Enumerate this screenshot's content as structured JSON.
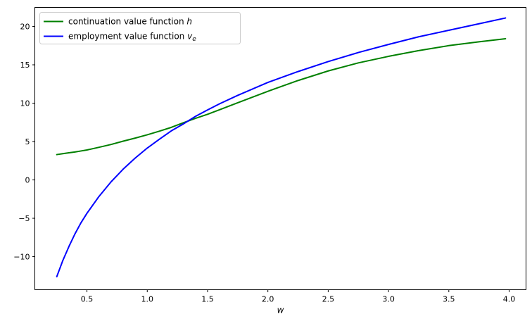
{
  "figure": {
    "background": "#ffffff",
    "axes_edge_color": "#000000",
    "legend_border_color": "#cccccc",
    "legend_background": "#ffffff"
  },
  "chart_data": {
    "type": "line",
    "title": "",
    "xlabel": "w",
    "ylabel": "",
    "grid": false,
    "legend_position": "upper left",
    "xlim": [
      0.068,
      4.14
    ],
    "ylim": [
      -14.31,
      22.48
    ],
    "x_ticks": {
      "values": [
        0.5,
        1.0,
        1.5,
        2.0,
        2.5,
        3.0,
        3.5,
        4.0
      ],
      "labels": [
        "0.5",
        "1.0",
        "1.5",
        "2.0",
        "2.5",
        "3.0",
        "3.5",
        "4.0"
      ]
    },
    "y_ticks": {
      "values": [
        -10,
        -5,
        0,
        5,
        10,
        15,
        20
      ],
      "labels": [
        "−10",
        "−5",
        "0",
        "5",
        "10",
        "15",
        "20"
      ]
    },
    "x": [
      0.25,
      0.3,
      0.35,
      0.4,
      0.45,
      0.5,
      0.6,
      0.7,
      0.8,
      0.9,
      1.0,
      1.1,
      1.2,
      1.3,
      1.4,
      1.5,
      1.6,
      1.75,
      2.0,
      2.25,
      2.5,
      2.75,
      3.0,
      3.25,
      3.5,
      3.75,
      3.97
    ],
    "series": [
      {
        "name": "continuation-value-function-h",
        "legend_text": "continuation value function ",
        "legend_math": "h",
        "legend_sub": "",
        "color": "#008000",
        "line_width": 2,
        "values": [
          3.3,
          3.42,
          3.53,
          3.64,
          3.77,
          3.9,
          4.25,
          4.62,
          5.05,
          5.45,
          5.88,
          6.35,
          6.85,
          7.45,
          8.02,
          8.55,
          9.15,
          10.05,
          11.55,
          12.95,
          14.2,
          15.25,
          16.1,
          16.85,
          17.5,
          18.0,
          18.4
        ]
      },
      {
        "name": "employment-value-function-ve",
        "legend_text": "employment value function ",
        "legend_math": "v",
        "legend_sub": "e",
        "color": "#0000ff",
        "line_width": 2,
        "values": [
          -12.6,
          -10.5,
          -8.7,
          -7.05,
          -5.6,
          -4.35,
          -2.15,
          -0.25,
          1.4,
          2.85,
          4.15,
          5.3,
          6.4,
          7.3,
          8.28,
          9.12,
          9.92,
          11.02,
          12.7,
          14.12,
          15.42,
          16.6,
          17.65,
          18.65,
          19.5,
          20.35,
          21.1
        ]
      }
    ]
  }
}
